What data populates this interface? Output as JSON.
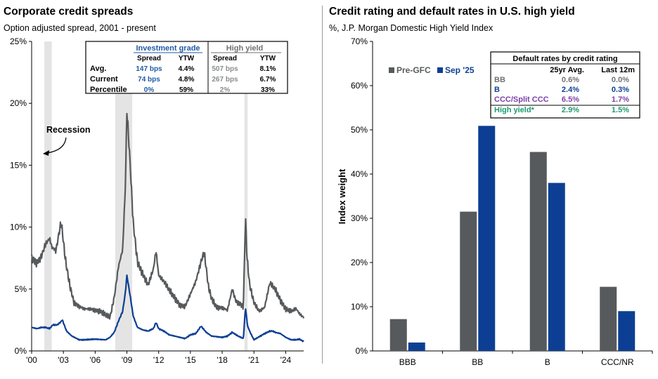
{
  "left": {
    "title": "Corporate credit spreads",
    "subtitle": "Option adjusted spread, 2001 - present",
    "annotation": "Recession",
    "table": {
      "group_ig": "Investment grade",
      "group_hy": "High yield",
      "col_spread": "Spread",
      "col_ytw": "YTW",
      "rows": [
        {
          "label": "Avg.",
          "ig_spread": "147 bps",
          "ig_ytw": "4.4%",
          "hy_spread": "507 bps",
          "hy_ytw": "8.1%"
        },
        {
          "label": "Current",
          "ig_spread": "74 bps",
          "ig_ytw": "4.8%",
          "hy_spread": "267 bps",
          "hy_ytw": "6.7%"
        },
        {
          "label": "Percentile",
          "ig_spread": "0%",
          "ig_ytw": "59%",
          "hy_spread": "2%",
          "hy_ytw": "33%"
        }
      ]
    },
    "colors": {
      "hy": "#575a5c",
      "ig": "#0c3f93",
      "ig_text": "#1f5aa6",
      "recession": "#e4e4e4"
    }
  },
  "right": {
    "title": "Credit rating and default rates in U.S. high yield",
    "subtitle": "%, J.P. Morgan Domestic High Yield Index",
    "table": {
      "title": "Default rates by credit rating",
      "col1": "25yr Avg.",
      "col2": "Last 12m",
      "rows": [
        {
          "label": "BB",
          "avg": "0.6%",
          "last": "0.0%",
          "color": "#6f7173"
        },
        {
          "label": "B",
          "avg": "2.4%",
          "last": "0.3%",
          "color": "#0c3f93"
        },
        {
          "label": "CCC/Split CCC",
          "avg": "6.5%",
          "last": "1.7%",
          "color": "#7a3fa8"
        },
        {
          "label": "High yield*",
          "avg": "2.9%",
          "last": "1.5%",
          "color": "#1f9a6e"
        }
      ]
    },
    "colors": {
      "pre": "#575a5c",
      "sep": "#0c3f93"
    }
  },
  "chart_data": [
    {
      "type": "line",
      "title": "Corporate credit spreads",
      "subtitle": "Option adjusted spread, 2001 - present",
      "xlabel": "",
      "ylabel": "",
      "x_tick_labels": [
        "'00",
        "'03",
        "'06",
        "'09",
        "'12",
        "'15",
        "'18",
        "'21",
        "'24"
      ],
      "x_tick_years": [
        2000,
        2003,
        2006,
        2009,
        2012,
        2015,
        2018,
        2021,
        2024
      ],
      "y_ticks": [
        0,
        5,
        10,
        15,
        20,
        25
      ],
      "y_tick_labels": [
        "0%",
        "5%",
        "10%",
        "15%",
        "20%",
        "25%"
      ],
      "xlim": [
        2000,
        2025.7
      ],
      "ylim": [
        0,
        25
      ],
      "recessions": [
        [
          2001.2,
          2001.9
        ],
        [
          2007.9,
          2009.5
        ],
        [
          2020.1,
          2020.4
        ]
      ],
      "series": [
        {
          "name": "High yield",
          "x": [
            2000,
            2000.5,
            2000.9,
            2001.3,
            2001.7,
            2001.9,
            2002.3,
            2002.6,
            2002.8,
            2003.2,
            2003.6,
            2004.0,
            2004.5,
            2005.0,
            2005.5,
            2006.0,
            2006.5,
            2007.0,
            2007.4,
            2007.8,
            2008.2,
            2008.6,
            2008.85,
            2009.0,
            2009.3,
            2009.6,
            2010.0,
            2010.5,
            2011.0,
            2011.5,
            2011.75,
            2012.0,
            2012.5,
            2013.0,
            2013.5,
            2014.0,
            2014.5,
            2015.0,
            2015.5,
            2016.0,
            2016.3,
            2016.7,
            2017.0,
            2017.5,
            2018.0,
            2018.5,
            2018.95,
            2019.3,
            2019.7,
            2020.0,
            2020.2,
            2020.35,
            2020.6,
            2021.0,
            2021.5,
            2022.0,
            2022.5,
            2023.0,
            2023.5,
            2024.0,
            2024.5,
            2025.0,
            2025.3,
            2025.7
          ],
          "values": [
            7.5,
            7.1,
            7.6,
            8.6,
            9.1,
            8.4,
            8.1,
            9.6,
            10.4,
            7.3,
            5.3,
            3.9,
            3.6,
            3.4,
            3.4,
            3.3,
            3.2,
            2.9,
            2.7,
            4.3,
            6.8,
            8.2,
            13.2,
            19.5,
            15.2,
            10.3,
            7.2,
            6.2,
            5.3,
            6.6,
            8.1,
            6.1,
            5.6,
            4.9,
            4.3,
            3.7,
            3.6,
            4.6,
            5.6,
            7.2,
            8.0,
            5.2,
            4.2,
            3.5,
            3.5,
            3.3,
            5.0,
            4.0,
            3.8,
            3.6,
            10.8,
            7.5,
            5.3,
            3.9,
            3.2,
            3.5,
            5.5,
            5.0,
            4.1,
            3.4,
            3.2,
            3.4,
            3.0,
            2.7
          ]
        },
        {
          "name": "Investment grade",
          "x": [
            2000,
            2000.5,
            2000.9,
            2001.3,
            2001.7,
            2002.0,
            2002.4,
            2002.7,
            2002.9,
            2003.3,
            2003.8,
            2004.5,
            2005.0,
            2006.0,
            2007.0,
            2007.4,
            2007.8,
            2008.2,
            2008.6,
            2008.85,
            2009.0,
            2009.3,
            2009.6,
            2010.0,
            2010.5,
            2011.0,
            2011.5,
            2011.75,
            2012.0,
            2012.5,
            2013.0,
            2014.0,
            2014.5,
            2015.0,
            2015.5,
            2016.0,
            2016.5,
            2017.0,
            2018.0,
            2018.5,
            2018.95,
            2019.5,
            2020.0,
            2020.2,
            2020.4,
            2020.7,
            2021.0,
            2022.0,
            2022.5,
            2022.8,
            2023.0,
            2023.5,
            2024.0,
            2024.5,
            2025.0,
            2025.3,
            2025.7
          ],
          "values": [
            1.9,
            1.8,
            1.9,
            1.9,
            1.8,
            2.1,
            2.1,
            2.3,
            2.5,
            1.6,
            1.2,
            0.9,
            0.9,
            0.95,
            0.9,
            1.1,
            1.5,
            2.4,
            3.2,
            4.7,
            6.1,
            4.5,
            2.8,
            1.9,
            1.7,
            1.6,
            1.8,
            2.3,
            1.8,
            1.6,
            1.3,
            1.1,
            1.0,
            1.3,
            1.4,
            2.0,
            1.5,
            1.2,
            1.1,
            1.2,
            1.5,
            1.2,
            1.0,
            3.5,
            2.0,
            1.4,
            0.9,
            1.4,
            1.6,
            1.6,
            1.5,
            1.4,
            1.1,
            0.9,
            0.9,
            0.95,
            0.75
          ]
        }
      ]
    },
    {
      "type": "bar",
      "title": "Credit rating and default rates in U.S. high yield",
      "subtitle": "%, J.P. Morgan Domestic High Yield Index",
      "xlabel": "",
      "ylabel": "Index weight",
      "categories": [
        "BBB",
        "BB",
        "B",
        "CCC/NR"
      ],
      "y_ticks": [
        0,
        10,
        20,
        30,
        40,
        50,
        60,
        70
      ],
      "y_tick_labels": [
        "0%",
        "10%",
        "20%",
        "30%",
        "40%",
        "50%",
        "60%",
        "70%"
      ],
      "ylim": [
        0,
        70
      ],
      "legend": "top-left",
      "series": [
        {
          "name": "Pre-GFC",
          "values": [
            7.2,
            31.5,
            45.0,
            14.5
          ]
        },
        {
          "name": "Sep '25",
          "values": [
            1.9,
            50.9,
            38.0,
            9.0
          ]
        }
      ]
    }
  ]
}
